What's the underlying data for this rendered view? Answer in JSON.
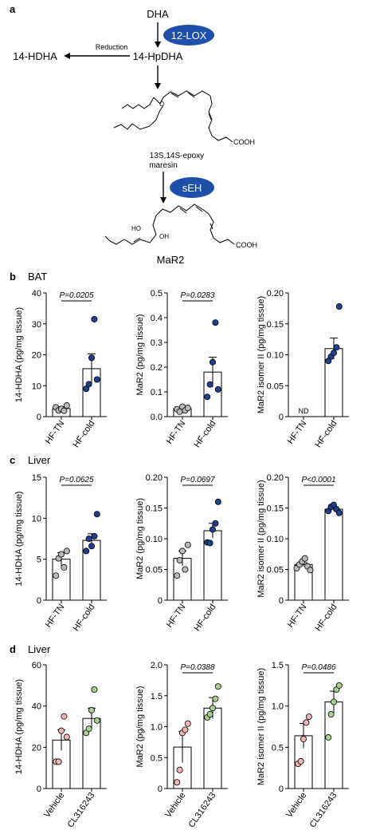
{
  "panel_a": {
    "letter": "a",
    "dha": "DHA",
    "enzyme1": "12-LOX",
    "reduction": "Reduction",
    "product_14hdha": "14-HDHA",
    "intermediate": "14-HpDHA",
    "cooh1": "COOH",
    "epoxy_line1": "13S,14S-epoxy",
    "epoxy_line2": "maresin",
    "enzyme2": "sEH",
    "ho_label": "HO",
    "oh_label": "OH",
    "cooh2": "COOH",
    "mar2": "MaR2",
    "colors": {
      "enzyme_fill": "#1f4fa8",
      "enzyme_text": "#ffffff"
    }
  },
  "sections": {
    "b": {
      "letter": "b",
      "tissue": "BAT"
    },
    "c": {
      "letter": "c",
      "tissue": "Liver"
    },
    "d": {
      "letter": "d",
      "tissue": "Liver"
    }
  },
  "nd_label": "ND",
  "colors": {
    "hf_tn": "#b9b9b9",
    "hf_cold": "#1f3f8f",
    "vehicle": "#efb4b4",
    "cl316243": "#a8d08d"
  },
  "chart_data": [
    {
      "id": "b1",
      "type": "bar",
      "categories": [
        "HF-TN",
        "HF-cold"
      ],
      "ylabel": "14-HDHA (pg/mg tissue)",
      "ylim": [
        0,
        40
      ],
      "yticks": [
        "0",
        "10",
        "20",
        "30",
        "40"
      ],
      "means": [
        2.6,
        15.5
      ],
      "errors": [
        0.6,
        4.8
      ],
      "points": [
        [
          3.0,
          2.0,
          2.5,
          1.9,
          3.6
        ],
        [
          9.0,
          10.5,
          19.0,
          31.5,
          12.0
        ]
      ],
      "pvalue": "P=0.0205",
      "nd": [
        false,
        false
      ]
    },
    {
      "id": "b2",
      "type": "bar",
      "categories": [
        "HF-TN",
        "HF-cold"
      ],
      "ylabel": "MaR2 (pg/mg tissue)",
      "ylim": [
        0,
        0.5
      ],
      "yticks": [
        "0.0",
        "0.1",
        "0.2",
        "0.3",
        "0.4",
        "0.5"
      ],
      "means": [
        0.032,
        0.18
      ],
      "errors": [
        0.006,
        0.06
      ],
      "points": [
        [
          0.03,
          0.02,
          0.04,
          0.025,
          0.035
        ],
        [
          0.08,
          0.13,
          0.22,
          0.38,
          0.11
        ]
      ],
      "pvalue": "P=0.0283",
      "nd": [
        false,
        false
      ]
    },
    {
      "id": "b3",
      "type": "bar",
      "categories": [
        "HF-TN",
        "HF-cold"
      ],
      "ylabel": "MaR2 isomer II (pg/mg tissue)",
      "ylim": [
        0,
        0.2
      ],
      "yticks": [
        "0",
        "0.05",
        "0.10",
        "0.15",
        "0.20"
      ],
      "means": [
        null,
        0.11
      ],
      "errors": [
        null,
        0.017
      ],
      "points": [
        [],
        [
          0.09,
          0.097,
          0.103,
          0.112,
          0.178
        ]
      ],
      "pvalue": "",
      "nd": [
        true,
        false
      ]
    },
    {
      "id": "c1",
      "type": "bar",
      "categories": [
        "HF-TN",
        "HF-cold"
      ],
      "ylabel": "14-HDHA (pg/mg tissue)",
      "ylim": [
        0,
        15
      ],
      "yticks": [
        "0",
        "5",
        "10",
        "15"
      ],
      "means": [
        5.0,
        7.3
      ],
      "errors": [
        0.8,
        0.8
      ],
      "points": [
        [
          3.0,
          5.1,
          5.6,
          4.0,
          6.0
        ],
        [
          6.0,
          7.5,
          6.6,
          7.8,
          10.5
        ]
      ],
      "pvalue": "P=0.0625",
      "nd": [
        false,
        false
      ]
    },
    {
      "id": "c2",
      "type": "bar",
      "categories": [
        "HF-TN",
        "HF-cold"
      ],
      "ylabel": "MaR2 (pg/mg tissue)",
      "ylim": [
        0,
        0.2
      ],
      "yticks": [
        "0",
        "0.05",
        "0.10",
        "0.15",
        "0.20"
      ],
      "means": [
        0.068,
        0.113
      ],
      "errors": [
        0.012,
        0.012
      ],
      "points": [
        [
          0.04,
          0.065,
          0.08,
          0.05,
          0.09
        ],
        [
          0.094,
          0.093,
          0.115,
          0.125,
          0.16
        ]
      ],
      "pvalue": "P=0.0697",
      "nd": [
        false,
        false
      ]
    },
    {
      "id": "c3",
      "type": "bar",
      "categories": [
        "HF-TN",
        "HF-cold"
      ],
      "ylabel": "MaR2 isomer II (pg/mg tissue)",
      "ylim": [
        0,
        0.2
      ],
      "yticks": [
        "0",
        "0.05",
        "0.10",
        "0.15",
        "0.20"
      ],
      "means": [
        0.058,
        0.148
      ],
      "errors": [
        0.003,
        0.003
      ],
      "points": [
        [
          0.052,
          0.058,
          0.063,
          0.068,
          0.055,
          0.049
        ],
        [
          0.145,
          0.152,
          0.155,
          0.148,
          0.142
        ]
      ],
      "pvalue": "P<0.0001",
      "nd": [
        false,
        false
      ]
    },
    {
      "id": "d1",
      "type": "bar",
      "categories": [
        "Vehicle",
        "CL316243"
      ],
      "ylabel": "14-HDHA (pg/mg tissue)",
      "ylim": [
        0,
        60
      ],
      "yticks": [
        "0",
        "20",
        "40",
        "60"
      ],
      "means": [
        23.5,
        34.0
      ],
      "errors": [
        5.0,
        5.0
      ],
      "points": [
        [
          13.0,
          13.0,
          28.0,
          35.0,
          25.0
        ],
        [
          27.0,
          29.0,
          38.0,
          48.0,
          33.0
        ]
      ],
      "pvalue": "",
      "nd": [
        false,
        false
      ]
    },
    {
      "id": "d2",
      "type": "bar",
      "categories": [
        "Vehicle",
        "CL316243"
      ],
      "ylabel": "MaR2 (pg/mg tissue)",
      "ylim": [
        0,
        2.0
      ],
      "yticks": [
        "0",
        "0.5",
        "1.0",
        "1.5",
        "2.0"
      ],
      "means": [
        0.67,
        1.3
      ],
      "errors": [
        0.25,
        0.17
      ],
      "points": [
        [
          0.1,
          0.3,
          0.9,
          0.95,
          1.05
        ],
        [
          1.15,
          1.2,
          1.3,
          1.45,
          1.65
        ]
      ],
      "pvalue": "P=0.0388",
      "nd": [
        false,
        false
      ]
    },
    {
      "id": "d3",
      "type": "bar",
      "categories": [
        "Vehicle",
        "CL316243"
      ],
      "ylabel": "MaR2 isomer II (pg/mg tissue)",
      "ylim": [
        0,
        1.5
      ],
      "yticks": [
        "0",
        "0.5",
        "1.0",
        "1.5"
      ],
      "means": [
        0.64,
        1.05
      ],
      "errors": [
        0.15,
        0.13
      ],
      "points": [
        [
          0.3,
          0.33,
          0.6,
          0.8,
          0.87
        ],
        [
          0.62,
          0.9,
          1.05,
          1.2,
          1.25
        ]
      ],
      "pvalue": "P=0.0486",
      "nd": [
        false,
        false
      ]
    }
  ]
}
